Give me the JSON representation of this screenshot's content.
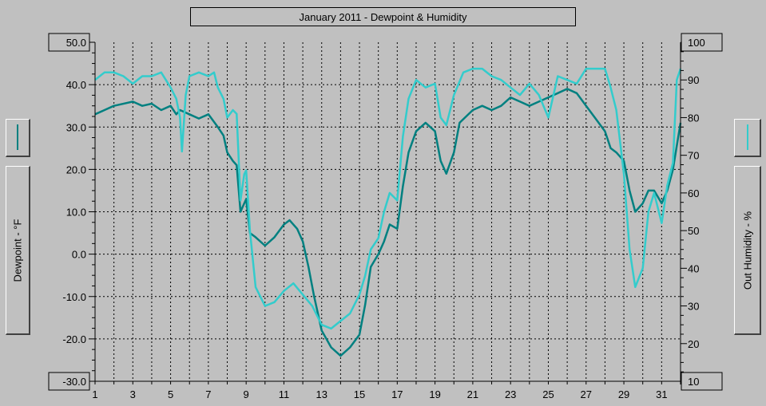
{
  "chart_data": {
    "type": "line",
    "title": "January 2011 - Dewpoint & Humidity",
    "xlabel": "",
    "ylabel_left": "Dewpoint - °F",
    "ylabel_right": "Out Humidity - %",
    "x_ticks": [
      "1",
      "3",
      "5",
      "7",
      "9",
      "11",
      "13",
      "15",
      "17",
      "19",
      "21",
      "23",
      "25",
      "27",
      "29",
      "31"
    ],
    "x_range": [
      1,
      32
    ],
    "y_left_range": [
      -30,
      50
    ],
    "y_left_ticks": [
      "50.0",
      "40.0",
      "30.0",
      "20.0",
      "10.0",
      "0.0",
      "-10.0",
      "-20.0",
      "-30.0"
    ],
    "y_right_range": [
      10,
      100
    ],
    "y_right_ticks": [
      "100",
      "90",
      "80",
      "70",
      "60",
      "50",
      "40",
      "30",
      "20",
      "10"
    ],
    "grid": true,
    "series": [
      {
        "name": "Dewpoint",
        "axis": "left",
        "color": "#008080",
        "points": [
          [
            1,
            33
          ],
          [
            1.5,
            34
          ],
          [
            2,
            35
          ],
          [
            3,
            36
          ],
          [
            3.5,
            35
          ],
          [
            4,
            35.5
          ],
          [
            4.5,
            34
          ],
          [
            5,
            35
          ],
          [
            5.3,
            33
          ],
          [
            5.5,
            34
          ],
          [
            6,
            33
          ],
          [
            6.5,
            32
          ],
          [
            7,
            33
          ],
          [
            7.5,
            30
          ],
          [
            7.8,
            28
          ],
          [
            8,
            24
          ],
          [
            8.3,
            22
          ],
          [
            8.5,
            21
          ],
          [
            8.7,
            10
          ],
          [
            8.9,
            12
          ],
          [
            9,
            13
          ],
          [
            9.2,
            5
          ],
          [
            9.5,
            4
          ],
          [
            10,
            2
          ],
          [
            10.5,
            4
          ],
          [
            11,
            7
          ],
          [
            11.3,
            8
          ],
          [
            11.7,
            6
          ],
          [
            12,
            3
          ],
          [
            12.3,
            -3
          ],
          [
            12.6,
            -10
          ],
          [
            13,
            -18
          ],
          [
            13.5,
            -22
          ],
          [
            14,
            -24
          ],
          [
            14.5,
            -22
          ],
          [
            15,
            -19
          ],
          [
            15.3,
            -12
          ],
          [
            15.6,
            -3
          ],
          [
            16,
            0
          ],
          [
            16.3,
            3
          ],
          [
            16.6,
            7
          ],
          [
            17,
            6
          ],
          [
            17.3,
            16
          ],
          [
            17.6,
            24
          ],
          [
            18,
            29
          ],
          [
            18.5,
            31
          ],
          [
            19,
            29
          ],
          [
            19.3,
            22
          ],
          [
            19.6,
            19
          ],
          [
            20,
            24
          ],
          [
            20.3,
            31
          ],
          [
            21,
            34
          ],
          [
            21.5,
            35
          ],
          [
            22,
            34
          ],
          [
            22.5,
            35
          ],
          [
            23,
            37
          ],
          [
            23.5,
            36
          ],
          [
            24,
            35
          ],
          [
            24.5,
            36
          ],
          [
            25,
            37
          ],
          [
            25.5,
            38
          ],
          [
            26,
            39
          ],
          [
            26.5,
            38
          ],
          [
            27,
            35
          ],
          [
            27.5,
            32
          ],
          [
            28,
            29
          ],
          [
            28.3,
            25
          ],
          [
            28.6,
            24
          ],
          [
            29,
            22
          ],
          [
            29.3,
            15
          ],
          [
            29.6,
            10
          ],
          [
            30,
            12
          ],
          [
            30.3,
            15
          ],
          [
            30.6,
            15
          ],
          [
            31,
            12
          ],
          [
            31.3,
            15
          ],
          [
            31.6,
            20
          ],
          [
            32,
            31
          ]
        ]
      },
      {
        "name": "Out Humidity",
        "axis": "right",
        "color": "#33cccc",
        "points": [
          [
            1,
            90
          ],
          [
            1.5,
            92
          ],
          [
            2,
            92
          ],
          [
            2.5,
            91
          ],
          [
            3,
            89
          ],
          [
            3.5,
            91
          ],
          [
            4,
            91
          ],
          [
            4.5,
            92
          ],
          [
            5,
            88
          ],
          [
            5.3,
            85
          ],
          [
            5.5,
            80
          ],
          [
            5.6,
            71
          ],
          [
            5.8,
            86
          ],
          [
            6,
            91
          ],
          [
            6.5,
            92
          ],
          [
            7,
            91
          ],
          [
            7.3,
            92
          ],
          [
            7.5,
            88
          ],
          [
            7.8,
            85
          ],
          [
            8,
            80
          ],
          [
            8.3,
            82
          ],
          [
            8.5,
            81
          ],
          [
            8.7,
            58
          ],
          [
            8.9,
            65
          ],
          [
            9,
            66
          ],
          [
            9.2,
            50
          ],
          [
            9.5,
            35
          ],
          [
            10,
            30
          ],
          [
            10.5,
            31
          ],
          [
            11,
            34
          ],
          [
            11.5,
            36
          ],
          [
            12,
            33
          ],
          [
            12.5,
            30
          ],
          [
            13,
            25
          ],
          [
            13.5,
            24
          ],
          [
            14,
            26
          ],
          [
            14.5,
            28
          ],
          [
            15,
            33
          ],
          [
            15.3,
            38
          ],
          [
            15.6,
            45
          ],
          [
            16,
            48
          ],
          [
            16.3,
            55
          ],
          [
            16.6,
            60
          ],
          [
            17,
            58
          ],
          [
            17.3,
            75
          ],
          [
            17.6,
            85
          ],
          [
            18,
            90
          ],
          [
            18.5,
            88
          ],
          [
            19,
            89
          ],
          [
            19.3,
            80
          ],
          [
            19.6,
            78
          ],
          [
            20,
            86
          ],
          [
            20.5,
            92
          ],
          [
            21,
            93
          ],
          [
            21.5,
            93
          ],
          [
            22,
            91
          ],
          [
            22.5,
            90
          ],
          [
            23,
            88
          ],
          [
            23.5,
            86
          ],
          [
            24,
            89
          ],
          [
            24.5,
            86
          ],
          [
            25,
            80
          ],
          [
            25.5,
            91
          ],
          [
            26,
            90
          ],
          [
            26.5,
            89
          ],
          [
            27,
            93
          ],
          [
            27.5,
            93
          ],
          [
            28,
            93
          ],
          [
            28.3,
            88
          ],
          [
            28.6,
            82
          ],
          [
            29,
            65
          ],
          [
            29.3,
            45
          ],
          [
            29.6,
            35
          ],
          [
            30,
            40
          ],
          [
            30.3,
            55
          ],
          [
            30.6,
            60
          ],
          [
            31,
            52
          ],
          [
            31.3,
            62
          ],
          [
            31.6,
            68
          ],
          [
            31.8,
            90
          ],
          [
            32,
            93
          ]
        ]
      }
    ]
  }
}
